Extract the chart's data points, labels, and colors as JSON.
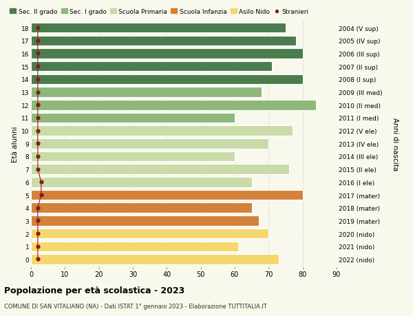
{
  "ages": [
    0,
    1,
    2,
    3,
    4,
    5,
    6,
    7,
    8,
    9,
    10,
    11,
    12,
    13,
    14,
    15,
    16,
    17,
    18
  ],
  "right_labels": [
    "2022 (nido)",
    "2021 (nido)",
    "2020 (nido)",
    "2019 (mater)",
    "2018 (mater)",
    "2017 (mater)",
    "2016 (I ele)",
    "2015 (II ele)",
    "2014 (III ele)",
    "2013 (IV ele)",
    "2012 (V ele)",
    "2011 (I med)",
    "2010 (II med)",
    "2009 (III med)",
    "2008 (I sup)",
    "2007 (II sup)",
    "2006 (III sup)",
    "2005 (IV sup)",
    "2004 (V sup)"
  ],
  "bar_values": [
    73,
    61,
    70,
    67,
    65,
    80,
    65,
    76,
    60,
    70,
    77,
    60,
    84,
    68,
    80,
    71,
    80,
    78,
    75
  ],
  "bar_colors": [
    "#f5d76e",
    "#f5d76e",
    "#f5d76e",
    "#d4813a",
    "#d4813a",
    "#d4813a",
    "#c8dba8",
    "#c8dba8",
    "#c8dba8",
    "#c8dba8",
    "#c8dba8",
    "#8db87a",
    "#8db87a",
    "#8db87a",
    "#4a7c4e",
    "#4a7c4e",
    "#4a7c4e",
    "#4a7c4e",
    "#4a7c4e"
  ],
  "stranieri_values": [
    2,
    2,
    2,
    2,
    2,
    3,
    3,
    2,
    2,
    2,
    2,
    2,
    2,
    2,
    2,
    2,
    2,
    2,
    2
  ],
  "stranieri_color": "#8b1a1a",
  "legend_items": [
    {
      "label": "Sec. II grado",
      "color": "#4a7c4e"
    },
    {
      "label": "Sec. I grado",
      "color": "#8db87a"
    },
    {
      "label": "Scuola Primaria",
      "color": "#c8dba8"
    },
    {
      "label": "Scuola Infanzia",
      "color": "#d4813a"
    },
    {
      "label": "Asilo Nido",
      "color": "#f5d76e"
    },
    {
      "label": "Stranieri",
      "color": "#8b1a1a"
    }
  ],
  "ylabel_left": "Età alunni",
  "ylabel_right": "Anni di nascita",
  "xlim": [
    0,
    90
  ],
  "xticks": [
    0,
    10,
    20,
    30,
    40,
    50,
    60,
    70,
    80,
    90
  ],
  "title": "Popolazione per età scolastica - 2023",
  "subtitle": "COMUNE DI SAN VITALIANO (NA) - Dati ISTAT 1° gennaio 2023 - Elaborazione TUTTITALIA.IT",
  "bg_color": "#f8f8ec",
  "bar_height": 0.78
}
